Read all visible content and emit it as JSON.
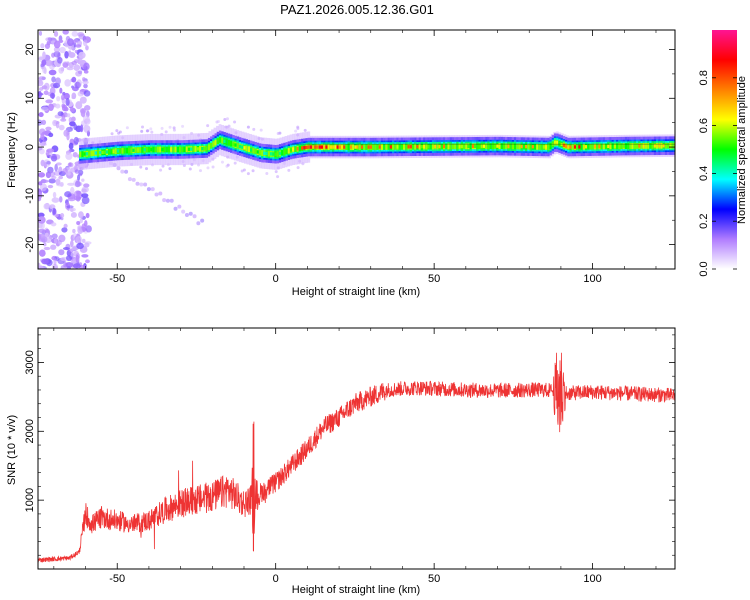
{
  "title": "PAZ1.2026.005.12.36.G01",
  "chart_data": [
    {
      "type": "heatmap",
      "name": "spectrogram",
      "xlabel": "Height of straight line (km)",
      "ylabel": "Frequency (Hz)",
      "xlim": [
        -75,
        126
      ],
      "ylim": [
        -25,
        24
      ],
      "xticks": [
        -50,
        0,
        50,
        100
      ],
      "yticks": [
        -20,
        -10,
        0,
        10,
        20
      ],
      "colorbar": {
        "label": "Normalized spectral amplitude",
        "range": [
          0,
          1
        ],
        "ticks": [
          0.0,
          0.2,
          0.4,
          0.6,
          0.8
        ],
        "colors": [
          "#ffffff",
          "#b07cff",
          "#0000ff",
          "#00ffff",
          "#00ff00",
          "#ffff00",
          "#ff8000",
          "#ff0000",
          "#ff1493"
        ]
      },
      "main_track": {
        "x": [
          -62,
          -50,
          -40,
          -30,
          -22,
          -18,
          -12,
          -5,
          0,
          5,
          10,
          30,
          50,
          70,
          86,
          88,
          92,
          110,
          126
        ],
        "freq": [
          -1.5,
          -0.8,
          -0.5,
          -0.5,
          -0.3,
          1.5,
          0.2,
          -1.2,
          -1.5,
          -0.5,
          0.0,
          0.0,
          0.1,
          0.2,
          0.0,
          1.0,
          0.0,
          0.2,
          0.3
        ],
        "amplitude": [
          0.5,
          0.55,
          0.55,
          0.55,
          0.55,
          0.5,
          0.6,
          0.5,
          0.5,
          0.6,
          0.85,
          0.8,
          0.7,
          0.7,
          0.65,
          0.55,
          0.85,
          0.7,
          0.7
        ]
      }
    },
    {
      "type": "line",
      "name": "snr",
      "xlabel": "Height of straight line (km)",
      "ylabel": "SNR (10 * v/v)",
      "xlim": [
        -75,
        126
      ],
      "ylim": [
        0,
        3500
      ],
      "xticks": [
        -50,
        0,
        50,
        100
      ],
      "yticks": [
        1000,
        2000,
        3000
      ],
      "color": "#ee3333",
      "series": [
        {
          "x": [
            -75,
            -65,
            -62,
            -60,
            -58,
            -55,
            -50,
            -45,
            -40,
            -35,
            -30,
            -25,
            -20,
            -15,
            -10,
            -5,
            0,
            5,
            10,
            15,
            20,
            25,
            30,
            35,
            40,
            45,
            50,
            60,
            70,
            80,
            85,
            88,
            90,
            92,
            95,
            100,
            110,
            120,
            126
          ],
          "y": [
            130,
            160,
            250,
            800,
            650,
            750,
            700,
            650,
            700,
            850,
            950,
            1000,
            1050,
            1150,
            950,
            1100,
            1250,
            1500,
            1750,
            2050,
            2200,
            2400,
            2500,
            2600,
            2620,
            2630,
            2620,
            2600,
            2590,
            2600,
            2600,
            2580,
            2600,
            2550,
            2560,
            2570,
            2550,
            2530,
            2520
          ]
        }
      ]
    }
  ]
}
